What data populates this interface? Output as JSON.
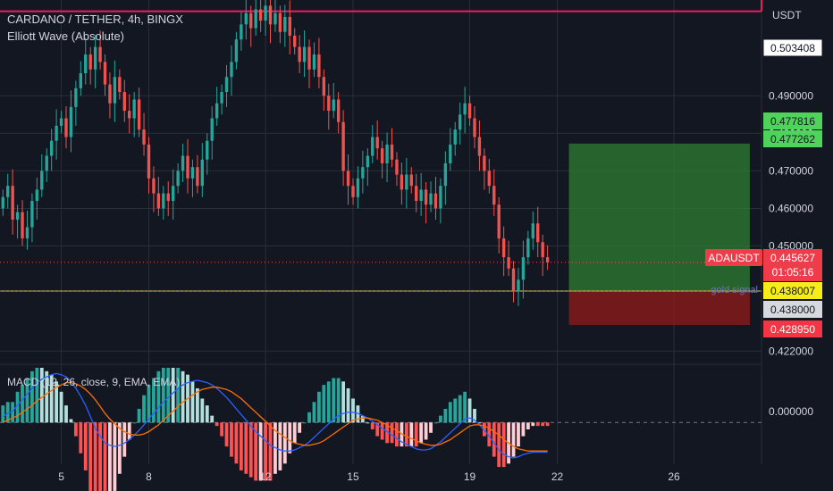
{
  "header": {
    "title": "CARDANO / TETHER, 4h, BINGX",
    "indicator": "Elliott Wave (Absolute)",
    "currency": "USDT"
  },
  "colors": {
    "background": "#131722",
    "up": "#26a69a",
    "down": "#ef5350",
    "grid": "#2a2e39",
    "text": "#d1d4dc",
    "target_zone": "#2e7d32",
    "stop_zone": "#8b1a1a",
    "entry_line": "#f0c419",
    "resistance_line": "#e91e63",
    "macd_line": "#2962ff",
    "signal_line": "#ff6d00"
  },
  "price_labels": {
    "top": "0.503408",
    "target_upper": "0.477816",
    "target_lower": "0.477262",
    "symbol": "ADAUSDT",
    "last": "0.445627",
    "countdown": "01:05:16",
    "gold_signal_text": "gold signal",
    "gold_signal_price": "0.438007",
    "support": "0.438000",
    "stop": "0.428950"
  },
  "macd": {
    "label": "MACD (12, 26, close, 9, EMA, EMA)",
    "zero_label": "0.000000"
  },
  "chart_data": {
    "type": "candlestick",
    "title": "CARDANO / TETHER, 4h, BINGX",
    "ylim": [
      0.4185,
      0.5155
    ],
    "y_ticks": [
      0.49,
      0.48,
      0.47,
      0.46,
      0.45,
      0.422
    ],
    "y_tick_labels": [
      "0.490000",
      "0.480000",
      "0.470000",
      "0.460000",
      "0.450000",
      "0.422000"
    ],
    "x_ticks": [
      5,
      8,
      12,
      15,
      19,
      22,
      26
    ],
    "x_tick_labels": [
      "5",
      "8",
      "12",
      "15",
      "19",
      "22",
      "26"
    ],
    "x_range": [
      2.9,
      29.0
    ],
    "candles_per_day": 6,
    "candle_start": 3.0,
    "closes": [
      0.463,
      0.466,
      0.457,
      0.459,
      0.452,
      0.455,
      0.462,
      0.465,
      0.47,
      0.474,
      0.478,
      0.482,
      0.484,
      0.479,
      0.487,
      0.492,
      0.496,
      0.501,
      0.497,
      0.503,
      0.499,
      0.493,
      0.488,
      0.495,
      0.491,
      0.486,
      0.484,
      0.489,
      0.481,
      0.477,
      0.468,
      0.464,
      0.46,
      0.464,
      0.462,
      0.466,
      0.47,
      0.474,
      0.468,
      0.471,
      0.466,
      0.473,
      0.478,
      0.484,
      0.488,
      0.491,
      0.495,
      0.499,
      0.505,
      0.509,
      0.512,
      0.508,
      0.513,
      0.51,
      0.514,
      0.509,
      0.512,
      0.507,
      0.511,
      0.506,
      0.503,
      0.499,
      0.503,
      0.497,
      0.501,
      0.495,
      0.49,
      0.486,
      0.489,
      0.483,
      0.47,
      0.466,
      0.463,
      0.468,
      0.471,
      0.474,
      0.479,
      0.476,
      0.472,
      0.477,
      0.473,
      0.469,
      0.465,
      0.469,
      0.466,
      0.462,
      0.465,
      0.461,
      0.464,
      0.46,
      0.466,
      0.472,
      0.477,
      0.481,
      0.485,
      0.488,
      0.484,
      0.479,
      0.474,
      0.47,
      0.466,
      0.461,
      0.452,
      0.447,
      0.444,
      0.438,
      0.441,
      0.447,
      0.452,
      0.456,
      0.451,
      0.447,
      0.445627
    ],
    "macd": [
      0.0005,
      0.0008,
      0.001,
      0.0015,
      0.002,
      0.0025,
      0.003,
      0.0035,
      0.0038,
      0.004,
      0.0042,
      0.0043,
      0.0042,
      0.004,
      0.0036,
      0.003,
      0.0023,
      0.0015,
      0.0005,
      -0.0005,
      -0.0012,
      -0.0018,
      -0.002,
      -0.0021,
      -0.002,
      -0.0018,
      -0.0015,
      -0.0011,
      -0.0007,
      -0.0002,
      0.0003,
      0.0008,
      0.0013,
      0.0018,
      0.0022,
      0.0026,
      0.003,
      0.0033,
      0.0035,
      0.0036,
      0.0037,
      0.0036,
      0.0035,
      0.0033,
      0.003,
      0.0026,
      0.0022,
      0.0017,
      0.0012,
      0.0007,
      0.0002,
      -0.0003,
      -0.0008,
      -0.0012,
      -0.0016,
      -0.002,
      -0.0022,
      -0.0024,
      -0.0025,
      -0.0025,
      -0.0024,
      -0.0022,
      -0.002,
      -0.0017,
      -0.0013,
      -0.0009,
      -0.0005,
      -0.0001,
      0.0003,
      0.0006,
      0.0008,
      0.0009,
      0.0009,
      0.0008,
      0.0006,
      0.0004,
      0.0001,
      -0.0002,
      -0.0005,
      -0.0008,
      -0.0011,
      -0.0014,
      -0.0017,
      -0.0019,
      -0.0021,
      -0.0023,
      -0.0024,
      -0.0024,
      -0.0023,
      -0.002,
      -0.0017,
      -0.0013,
      -0.0009,
      -0.0005,
      -0.0001,
      0.0003,
      0.0004,
      0.0002,
      -0.0002,
      -0.0007,
      -0.0012,
      -0.0018,
      -0.0024,
      -0.0028,
      -0.003,
      -0.0031,
      -0.003,
      -0.0028,
      -0.0027,
      -0.0026,
      -0.0026,
      -0.0026,
      -0.0026
    ],
    "signal": [
      0.0,
      0.0002,
      0.0004,
      0.0006,
      0.0009,
      0.0012,
      0.0015,
      0.0019,
      0.0022,
      0.0025,
      0.0028,
      0.0031,
      0.0033,
      0.0035,
      0.0035,
      0.0034,
      0.0032,
      0.0029,
      0.0025,
      0.002,
      0.0014,
      0.0008,
      0.0003,
      -0.0001,
      -0.0005,
      -0.0008,
      -0.001,
      -0.0011,
      -0.0011,
      -0.001,
      -0.0008,
      -0.0005,
      -0.0002,
      0.0002,
      0.0006,
      0.001,
      0.0014,
      0.0018,
      0.0021,
      0.0024,
      0.0027,
      0.0029,
      0.003,
      0.0031,
      0.0031,
      0.003,
      0.0029,
      0.0027,
      0.0024,
      0.0021,
      0.0017,
      0.0013,
      0.0009,
      0.0005,
      0.0001,
      -0.0003,
      -0.0007,
      -0.001,
      -0.0013,
      -0.0016,
      -0.0018,
      -0.0019,
      -0.002,
      -0.002,
      -0.0019,
      -0.0018,
      -0.0016,
      -0.0013,
      -0.001,
      -0.0007,
      -0.0004,
      -0.0001,
      0.0002,
      0.0003,
      0.0004,
      0.0004,
      0.0003,
      0.0002,
      0.0,
      -0.0002,
      -0.0005,
      -0.0007,
      -0.001,
      -0.0012,
      -0.0014,
      -0.0016,
      -0.0018,
      -0.0019,
      -0.002,
      -0.002,
      -0.0019,
      -0.0017,
      -0.0015,
      -0.0012,
      -0.0009,
      -0.0006,
      -0.0003,
      -0.0002,
      -0.0002,
      -0.0003,
      -0.0005,
      -0.0008,
      -0.0011,
      -0.0015,
      -0.0018,
      -0.0021,
      -0.0023,
      -0.0024,
      -0.0025,
      -0.0025,
      -0.0025,
      -0.0025,
      -0.0025
    ],
    "macd_ylim": [
      -0.0035,
      0.0048
    ],
    "resistance": 0.5125,
    "entry": 0.438007,
    "support": 0.438,
    "last_price": 0.445627,
    "position": {
      "target": 0.477262,
      "entry": 0.438007,
      "stop": 0.42895,
      "x_start": 22.4,
      "x_end": 28.6
    }
  }
}
